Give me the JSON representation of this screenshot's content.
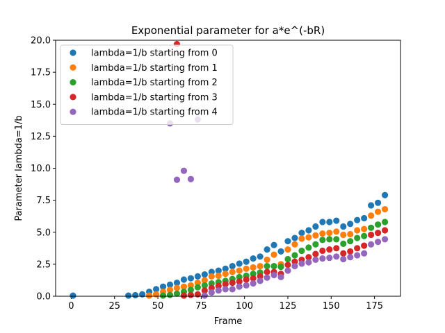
{
  "chart_data": {
    "type": "scatter",
    "title": "Exponential parameter for a*e^(-bR)",
    "xlabel": "Frame",
    "ylabel": "Parameter lambda=1/b",
    "xlim": [
      -9,
      190
    ],
    "ylim": [
      0,
      20
    ],
    "x_ticks": [
      0,
      25,
      50,
      75,
      100,
      125,
      150,
      175
    ],
    "y_ticks": [
      0.0,
      2.5,
      5.0,
      7.5,
      10.0,
      12.5,
      15.0,
      17.5,
      20.0
    ],
    "x_tick_labels": [
      "0",
      "25",
      "50",
      "75",
      "100",
      "125",
      "150",
      "175"
    ],
    "y_tick_labels": [
      "0.0",
      "2.5",
      "5.0",
      "7.5",
      "10.0",
      "12.5",
      "15.0",
      "17.5",
      "20.0"
    ],
    "grid": false,
    "legend_position": "upper-left",
    "series": [
      {
        "name": "lambda=1/b starting from 0",
        "color": "#1f77b4",
        "x": [
          1,
          33,
          37,
          41,
          45,
          49,
          53,
          57,
          61,
          65,
          69,
          73,
          77,
          81,
          85,
          89,
          93,
          97,
          101,
          105,
          109,
          113,
          117,
          121,
          125,
          129,
          133,
          137,
          141,
          145,
          149,
          153,
          157,
          161,
          165,
          169,
          173,
          177,
          181
        ],
        "y": [
          0.05,
          0.05,
          0.08,
          0.15,
          0.35,
          0.55,
          0.75,
          0.9,
          1.05,
          1.3,
          1.4,
          1.55,
          1.7,
          1.9,
          2.0,
          2.15,
          2.35,
          2.55,
          2.7,
          2.95,
          3.1,
          3.65,
          4.0,
          3.5,
          4.3,
          4.55,
          4.95,
          5.15,
          5.45,
          5.8,
          5.8,
          5.9,
          5.45,
          5.65,
          5.95,
          6.1,
          7.1,
          7.3,
          7.9
        ]
      },
      {
        "name": "lambda=1/b starting from 1",
        "color": "#ff7f0e",
        "x": [
          45,
          49,
          53,
          57,
          61,
          65,
          69,
          73,
          77,
          81,
          85,
          89,
          93,
          97,
          101,
          105,
          109,
          113,
          117,
          121,
          125,
          129,
          133,
          137,
          141,
          145,
          149,
          153,
          157,
          161,
          165,
          169,
          173,
          177,
          181
        ],
        "y": [
          0.05,
          0.15,
          0.35,
          0.5,
          0.65,
          0.75,
          0.85,
          1.05,
          1.25,
          1.55,
          1.6,
          1.75,
          1.9,
          2.0,
          2.15,
          2.25,
          2.35,
          2.85,
          3.25,
          2.5,
          3.65,
          4.05,
          4.5,
          4.6,
          4.75,
          4.9,
          4.95,
          5.05,
          4.8,
          4.85,
          5.15,
          5.25,
          6.3,
          6.6,
          6.8
        ]
      },
      {
        "name": "lambda=1/b starting from 2",
        "color": "#2ca02c",
        "x": [
          53,
          57,
          61,
          65,
          69,
          73,
          77,
          81,
          85,
          89,
          93,
          97,
          101,
          105,
          109,
          113,
          117,
          121,
          125,
          129,
          133,
          137,
          141,
          145,
          149,
          153,
          157,
          161,
          165,
          169,
          173,
          177,
          181
        ],
        "y": [
          0.05,
          0.1,
          0.2,
          0.35,
          0.5,
          0.7,
          0.85,
          1.0,
          1.1,
          1.2,
          1.35,
          1.5,
          1.6,
          1.75,
          1.85,
          2.35,
          2.35,
          2.3,
          2.9,
          3.2,
          3.55,
          3.8,
          4.05,
          4.4,
          4.45,
          4.45,
          4.1,
          4.3,
          4.55,
          4.7,
          5.35,
          5.6,
          5.8
        ]
      },
      {
        "name": "lambda=1/b starting from 3",
        "color": "#d62728",
        "x": [
          61,
          65,
          69,
          73,
          77,
          81,
          85,
          89,
          93,
          97,
          101,
          105,
          109,
          113,
          117,
          121,
          125,
          129,
          133,
          137,
          141,
          145,
          149,
          153,
          157,
          161,
          165,
          169,
          173,
          177,
          181
        ],
        "y": [
          19.7,
          0.05,
          0.1,
          0.15,
          0.45,
          0.65,
          0.8,
          0.95,
          1.05,
          1.15,
          1.3,
          1.4,
          1.55,
          1.9,
          1.9,
          1.75,
          2.45,
          2.7,
          2.85,
          3.05,
          3.3,
          3.55,
          3.65,
          3.75,
          3.35,
          3.5,
          3.75,
          3.95,
          4.8,
          4.95,
          5.15
        ]
      },
      {
        "name": "lambda=1/b starting from 4",
        "color": "#9467bd",
        "x": [
          57,
          61,
          65,
          69,
          73,
          77,
          81,
          85,
          89,
          93,
          97,
          101,
          105,
          109,
          113,
          117,
          121,
          125,
          129,
          133,
          137,
          141,
          145,
          149,
          153,
          157,
          161,
          165,
          169,
          173,
          177,
          181
        ],
        "y": [
          13.5,
          9.1,
          9.8,
          9.15,
          13.8,
          0.05,
          0.3,
          0.45,
          0.55,
          0.55,
          0.75,
          0.85,
          1.0,
          1.2,
          1.45,
          1.65,
          1.5,
          2.0,
          2.35,
          2.55,
          2.65,
          2.85,
          2.95,
          3.0,
          3.1,
          2.9,
          3.05,
          3.2,
          3.35,
          4.05,
          4.25,
          4.45
        ]
      }
    ]
  }
}
